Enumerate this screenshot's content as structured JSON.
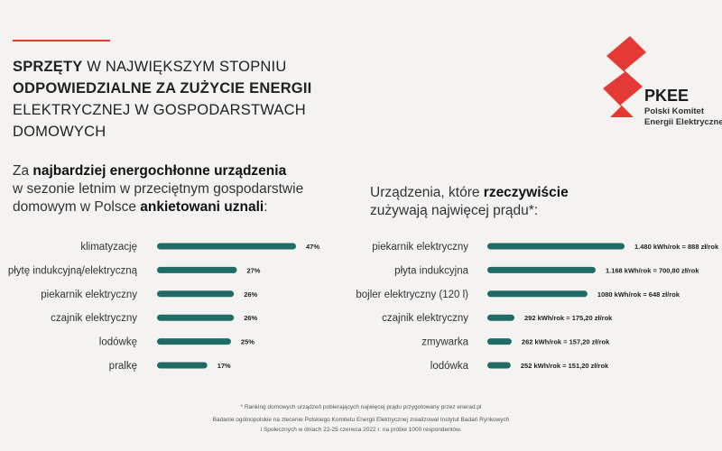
{
  "header": {
    "title_p1": "SPRZĘTY",
    "title_p2": " W NAJWIĘKSZYM STOPNIU",
    "title_p3": "ODPOWIEDZIALNE ZA ZUŻYCIE ENERGII",
    "title_p4": "ELEKTRYCZNEJ W GOSPODARSTWACH",
    "title_p5": "DOMOWYCH"
  },
  "logo": {
    "name": "PKEE",
    "sub1": "Polski Komitet",
    "sub2": "Energii Elektrycznej",
    "color": "#e53935"
  },
  "left_intro": {
    "p1": "Za ",
    "p2": "najbardziej energochłonne urządzenia",
    "p3": "w sezonie letnim w przeciętnym gospodarstwie",
    "p4": "domowym w Polsce ",
    "p5": "ankietowani uznali",
    "p6": ":"
  },
  "right_intro": {
    "p1": "Urządzenia, które ",
    "p2": "rzeczywiście",
    "p3": "zużywają najwięcej prądu*:"
  },
  "footer": {
    "note": "* Ranking domowych urządzeń pobierających najwięcej prądu przygotowany przez enerad.pl",
    "survey_line1": "Badanie ogólnopolskie na zlecenie Polskiego Komitetu Energii Elektrycznej zrealizował Instytut Badań Rynkowych",
    "survey_line2": "i Społecznych w dniach 22-25 czerwca 2022 r. na próbie 1000 respondentów."
  },
  "chart_data": [
    {
      "type": "bar",
      "orientation": "horizontal",
      "bar_color": "#1f6b66",
      "categories": [
        "klimatyzację",
        "płytę indukcyjną/elektryczną",
        "piekarnik elektryczny",
        "czajnik elektryczny",
        "lodówkę",
        "pralkę"
      ],
      "values": [
        47,
        27,
        26,
        26,
        25,
        17
      ],
      "labels": [
        "47%",
        "27%",
        "26%",
        "26%",
        "25%",
        "17%"
      ],
      "unit": "%"
    },
    {
      "type": "bar",
      "orientation": "horizontal",
      "bar_color": "#1f6b66",
      "categories": [
        "piekarnik elektryczny",
        "płyta indukcyjna",
        "bojler elektryczny (120 l)",
        "czajnik elektryczny",
        "zmywarka",
        "lodówka"
      ],
      "values": [
        1480,
        1168,
        1080,
        292,
        262,
        252
      ],
      "labels": [
        "1.480 kWh/rok = 888 zł/rok",
        "1.168 kWh/rok = 700,80 zł/rok",
        "1080 kWh/rok = 648 zł/rok",
        "292 kWh/rok = 175,20 zł/rok",
        "262 kWh/rok = 157,20 zł/rok",
        "252 kWh/rok = 151,20 zł/rok"
      ],
      "unit": "kWh/rok"
    }
  ]
}
